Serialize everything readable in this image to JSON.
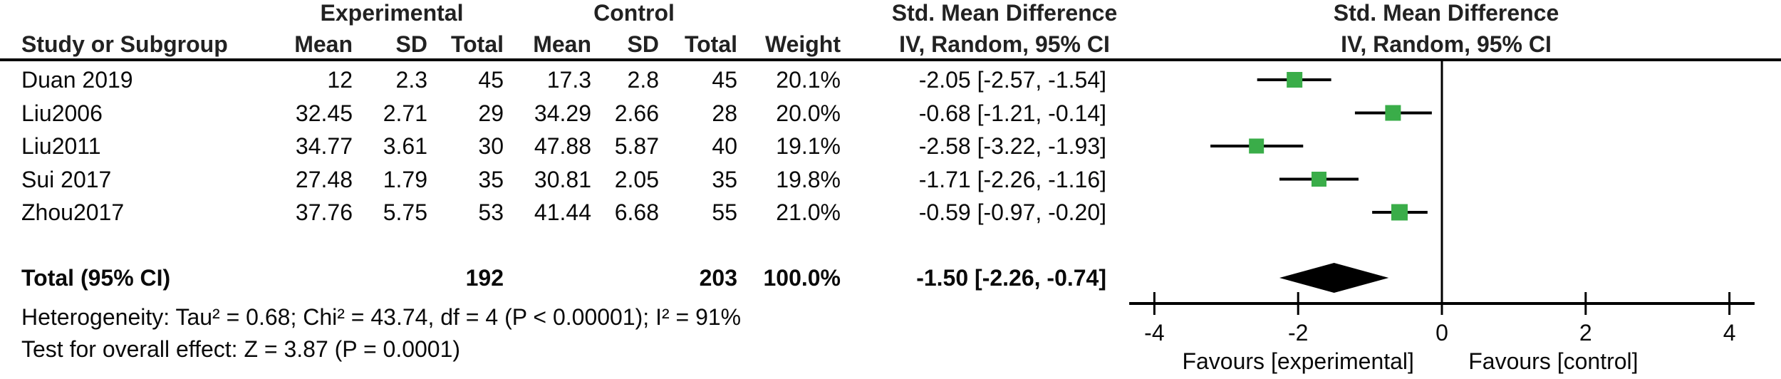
{
  "table": {
    "group_headers": {
      "experimental": "Experimental",
      "control": "Control",
      "smd1": "Std. Mean Difference",
      "smd2": "Std. Mean Difference"
    },
    "col_headers": {
      "study": "Study or Subgroup",
      "mean1": "Mean",
      "sd1": "SD",
      "total1": "Total",
      "mean2": "Mean",
      "sd2": "SD",
      "total2": "Total",
      "weight": "Weight",
      "ci1": "IV, Random, 95% CI",
      "ci2": "IV, Random, 95% CI"
    },
    "rows": [
      {
        "study": "Duan 2019",
        "mean1": "12",
        "sd1": "2.3",
        "total1": "45",
        "mean2": "17.3",
        "sd2": "2.8",
        "total2": "45",
        "weight": "20.1%",
        "ci": "-2.05 [-2.57, -1.54]"
      },
      {
        "study": "Liu2006",
        "mean1": "32.45",
        "sd1": "2.71",
        "total1": "29",
        "mean2": "34.29",
        "sd2": "2.66",
        "total2": "28",
        "weight": "20.0%",
        "ci": "-0.68 [-1.21, -0.14]"
      },
      {
        "study": "Liu2011",
        "mean1": "34.77",
        "sd1": "3.61",
        "total1": "30",
        "mean2": "47.88",
        "sd2": "5.87",
        "total2": "40",
        "weight": "19.1%",
        "ci": "-2.58 [-3.22, -1.93]"
      },
      {
        "study": "Sui 2017",
        "mean1": "27.48",
        "sd1": "1.79",
        "total1": "35",
        "mean2": "30.81",
        "sd2": "2.05",
        "total2": "35",
        "weight": "19.8%",
        "ci": "-1.71 [-2.26, -1.16]"
      },
      {
        "study": "Zhou2017",
        "mean1": "37.76",
        "sd1": "5.75",
        "total1": "53",
        "mean2": "41.44",
        "sd2": "6.68",
        "total2": "55",
        "weight": "21.0%",
        "ci": "-0.59 [-0.97, -0.20]"
      }
    ],
    "total": {
      "label": "Total (95% CI)",
      "total1": "192",
      "total2": "203",
      "weight": "100.0%",
      "ci": "-1.50 [-2.26, -0.74]"
    },
    "footer": {
      "heterogeneity": "Heterogeneity: Tau² = 0.68; Chi² = 43.74, df = 4 (P < 0.00001); I² = 91%",
      "overall_effect": "Test for overall effect: Z = 3.87 (P = 0.0001)"
    }
  },
  "chart_data": {
    "type": "forest",
    "effect_measure": "Std. Mean Difference",
    "model": "IV, Random, 95% CI",
    "x_axis": {
      "ticks": [
        -4,
        -2,
        0,
        2,
        4
      ],
      "min": -4.35,
      "max": 4.35,
      "zero_line": 0
    },
    "studies": [
      {
        "name": "Duan 2019",
        "smd": -2.05,
        "ci_low": -2.57,
        "ci_high": -1.54,
        "weight_pct": 20.1
      },
      {
        "name": "Liu2006",
        "smd": -0.68,
        "ci_low": -1.21,
        "ci_high": -0.14,
        "weight_pct": 20.0
      },
      {
        "name": "Liu2011",
        "smd": -2.58,
        "ci_low": -3.22,
        "ci_high": -1.93,
        "weight_pct": 19.1
      },
      {
        "name": "Sui 2017",
        "smd": -1.71,
        "ci_low": -2.26,
        "ci_high": -1.16,
        "weight_pct": 19.8
      },
      {
        "name": "Zhou2017",
        "smd": -0.59,
        "ci_low": -0.97,
        "ci_high": -0.2,
        "weight_pct": 21.0
      }
    ],
    "pooled": {
      "label": "Total (95% CI)",
      "smd": -1.5,
      "ci_low": -2.26,
      "ci_high": -0.74,
      "weight_pct": 100.0
    },
    "favours_left": "Favours [experimental]",
    "favours_right": "Favours [control]",
    "marker_color": "#3aad49",
    "line_color": "#000000"
  }
}
